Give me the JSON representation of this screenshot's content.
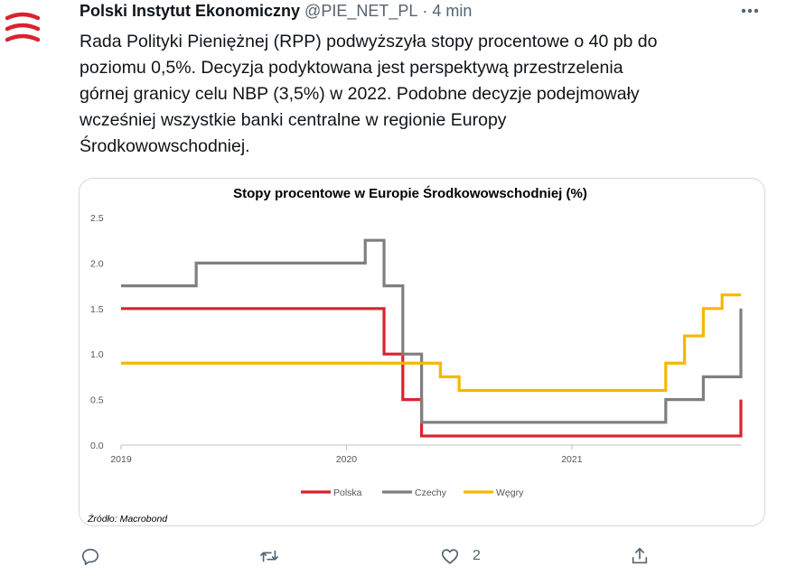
{
  "tweet": {
    "author_name": "Polski Instytut Ekonomiczny",
    "handle": "@PIE_NET_PL",
    "separator": "·",
    "time": "4 min",
    "more_label": "•••",
    "text_lines": [
      "Rada Polityki Pieniężnej (RPP) podwyższyła stopy procentowe o 40 pb do",
      "poziomu 0,5%. Decyzja podyktowana jest perspektywą przestrzelenia",
      "górnej granicy celu NBP (3,5%) w 2022. Podobne decyzje podejmowały",
      "wcześniej wszystkie banki centralne w regionie Europy",
      "Środkowowschodniej."
    ]
  },
  "actions": {
    "reply_icon": "reply-icon",
    "retweet_icon": "retweet-icon",
    "like_icon": "heart-icon",
    "like_count": "2",
    "share_icon": "share-icon"
  },
  "colors": {
    "polska": "#d9232e",
    "czechy": "#7f7f7f",
    "wegry": "#f5b800",
    "brand": "#d9232e"
  },
  "chart_data": {
    "type": "line",
    "title": "Stopy procentowe w Europie Środkowowschodniej (%)",
    "xlabel": "",
    "ylabel": "",
    "xlim": [
      "2019-01",
      "2021-10"
    ],
    "ylim": [
      0,
      2.5
    ],
    "y_ticks": [
      "0.0",
      "0.5",
      "1.0",
      "1.5",
      "2.0",
      "2.5"
    ],
    "x_ticks": [
      "2019",
      "2020",
      "2021"
    ],
    "grid": false,
    "legend_position": "bottom",
    "source": "Źródło: Macrobond",
    "series": [
      {
        "name": "Polska",
        "color": "#d9232e",
        "points": [
          [
            "2019-01",
            1.5
          ],
          [
            "2020-03",
            1.0
          ],
          [
            "2020-04",
            0.5
          ],
          [
            "2020-05",
            0.1
          ],
          [
            "2021-10",
            0.5
          ]
        ]
      },
      {
        "name": "Czechy",
        "color": "#7f7f7f",
        "points": [
          [
            "2019-01",
            1.75
          ],
          [
            "2019-05",
            2.0
          ],
          [
            "2020-02",
            2.25
          ],
          [
            "2020-03",
            1.75
          ],
          [
            "2020-04",
            1.0
          ],
          [
            "2020-05",
            0.25
          ],
          [
            "2021-06",
            0.5
          ],
          [
            "2021-08",
            0.75
          ],
          [
            "2021-10",
            1.5
          ]
        ]
      },
      {
        "name": "Węgry",
        "color": "#f5b800",
        "points": [
          [
            "2019-01",
            0.9
          ],
          [
            "2020-06",
            0.75
          ],
          [
            "2020-07",
            0.6
          ],
          [
            "2021-06",
            0.9
          ],
          [
            "2021-07",
            1.2
          ],
          [
            "2021-08",
            1.5
          ],
          [
            "2021-09",
            1.65
          ]
        ]
      }
    ]
  }
}
